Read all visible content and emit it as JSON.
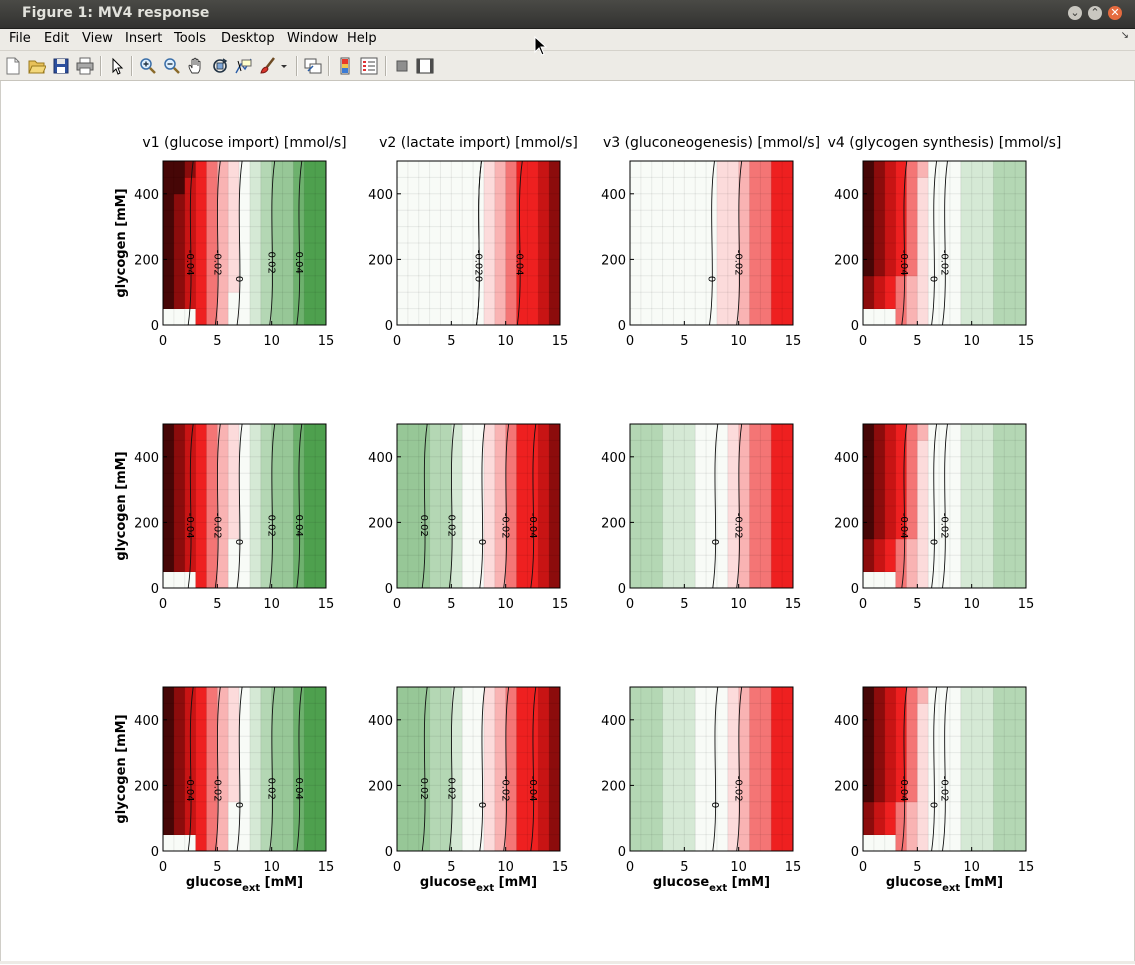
{
  "window": {
    "title": "Figure 1: MV4 response",
    "buttons": [
      {
        "name": "minimize",
        "glyph": "⌄"
      },
      {
        "name": "maximize",
        "glyph": "⌃"
      },
      {
        "name": "close",
        "glyph": "✕"
      }
    ]
  },
  "menubar": {
    "items": [
      "File",
      "Edit",
      "View",
      "Insert",
      "Tools",
      "Desktop",
      "Window",
      "Help"
    ],
    "dock_arrow": "↘"
  },
  "toolbar": {
    "items": [
      {
        "icon": "new-figure-icon"
      },
      {
        "icon": "open-file-icon"
      },
      {
        "icon": "save-icon"
      },
      {
        "icon": "print-icon"
      },
      {
        "icon": "pointer-icon"
      },
      {
        "icon": "zoom-in-icon"
      },
      {
        "icon": "zoom-out-icon"
      },
      {
        "icon": "pan-icon"
      },
      {
        "icon": "rotate-3d-icon"
      },
      {
        "icon": "data-cursor-icon"
      },
      {
        "icon": "brush-icon"
      },
      {
        "icon": "brush-dropdown-icon"
      },
      {
        "icon": "link-plot-icon"
      },
      {
        "icon": "colorbar-icon"
      },
      {
        "icon": "legend-icon"
      },
      {
        "icon": "hide-plot-tools-icon"
      },
      {
        "icon": "show-plot-tools-icon"
      }
    ]
  },
  "figure": {
    "colors": {
      "negative": "#ee2020",
      "positive": "#2f8f2f",
      "neutral": "#ffffff"
    },
    "column_titles": [
      "v1 (glucose import) [mmol/s]",
      "v2 (lactate import) [mmol/s]",
      "v3 (gluconeogenesis) [mmol/s]",
      "v4 (glycogen synthesis) [mmol/s]"
    ],
    "ylabel": "glycogen [mM]",
    "xlabel": {
      "main": "glucose",
      "sub": "ext",
      "unit": " [mM]"
    },
    "xticks": [
      "0",
      "5",
      "10",
      "15"
    ],
    "yticks": [
      "0",
      "200",
      "400"
    ]
  },
  "chart_data": {
    "type": "heatmap",
    "layout": "3 rows x 4 columns of filled contour heatmaps",
    "x": {
      "label": "glucose_ext [mM]",
      "range": [
        0,
        15
      ],
      "ticks": [
        0,
        5,
        10,
        15
      ],
      "cells": 15
    },
    "y": {
      "label": "glycogen [mM]",
      "range": [
        0,
        500
      ],
      "ticks": [
        0,
        200,
        400
      ],
      "cells": 10
    },
    "color_scale": "red = negative flux, white = zero, green = positive flux",
    "rows": [
      {
        "panels": [
          {
            "title": "v1 (glucose import) [mmol/s]",
            "zero_x": 7.0,
            "low_x": 3.5,
            "xmax_val": 0.05,
            "xmin_val": -0.065,
            "glycogen_effect": -0.012,
            "contours": [
              "-0.04",
              "-0.02",
              "0",
              "0.02",
              "0.04"
            ]
          },
          {
            "title": "v2 (lactate import) [mmol/s]",
            "zero_x": 7.5,
            "xmax_val": -0.06,
            "xmin_val": 0.0,
            "contours": [
              "0",
              "-0.02",
              "-0.04"
            ]
          },
          {
            "title": "v3 (gluconeogenesis) [mmol/s]",
            "zero_x": 7.5,
            "xmax_val": -0.04,
            "xmin_val": 0.0,
            "contours": [
              "0",
              "-0.02"
            ]
          },
          {
            "title": "v4 (glycogen synthesis) [mmol/s]",
            "zero_x": 6.5,
            "low_x": 3.5,
            "xmax_val": 0.02,
            "xmin_val": -0.06,
            "glycogen_effect": -0.012,
            "contours": [
              "-0.04",
              "-0.02",
              "0"
            ]
          }
        ]
      },
      {
        "panels": [
          {
            "zero_x": 7.0,
            "low_x": 3.5,
            "xmax_val": 0.05,
            "xmin_val": -0.065,
            "glycogen_effect": -0.008,
            "contours": [
              "-0.04",
              "-0.02",
              "0",
              "0.02",
              "0.04"
            ]
          },
          {
            "zero_x": 7.8,
            "xmax_val": -0.06,
            "xmin_val": 0.03,
            "contours": [
              "0.02",
              "0.02",
              "0",
              "-0.02",
              "-0.04"
            ]
          },
          {
            "zero_x": 7.8,
            "xmax_val": -0.04,
            "xmin_val": 0.02,
            "contours": [
              "0",
              "-0.02"
            ]
          },
          {
            "zero_x": 6.5,
            "low_x": 3.5,
            "xmax_val": 0.02,
            "xmin_val": -0.06,
            "glycogen_effect": -0.012,
            "contours": [
              "-0.04",
              "-0.02",
              "0"
            ]
          }
        ]
      },
      {
        "panels": [
          {
            "zero_x": 7.0,
            "low_x": 3.5,
            "xmax_val": 0.05,
            "xmin_val": -0.065,
            "glycogen_effect": -0.008,
            "contours": [
              "-0.04",
              "-0.02",
              "0",
              "0.02",
              "0.04"
            ]
          },
          {
            "zero_x": 7.8,
            "xmax_val": -0.06,
            "xmin_val": 0.03,
            "contours": [
              "0.02",
              "0.02",
              "0",
              "-0.02",
              "-0.04"
            ]
          },
          {
            "zero_x": 7.8,
            "xmax_val": -0.04,
            "xmin_val": 0.02,
            "contours": [
              "0",
              "-0.02"
            ]
          },
          {
            "zero_x": 6.5,
            "low_x": 3.5,
            "xmax_val": 0.02,
            "xmin_val": -0.06,
            "glycogen_effect": -0.012,
            "contours": [
              "-0.04",
              "-0.02",
              "0"
            ]
          }
        ]
      }
    ]
  }
}
